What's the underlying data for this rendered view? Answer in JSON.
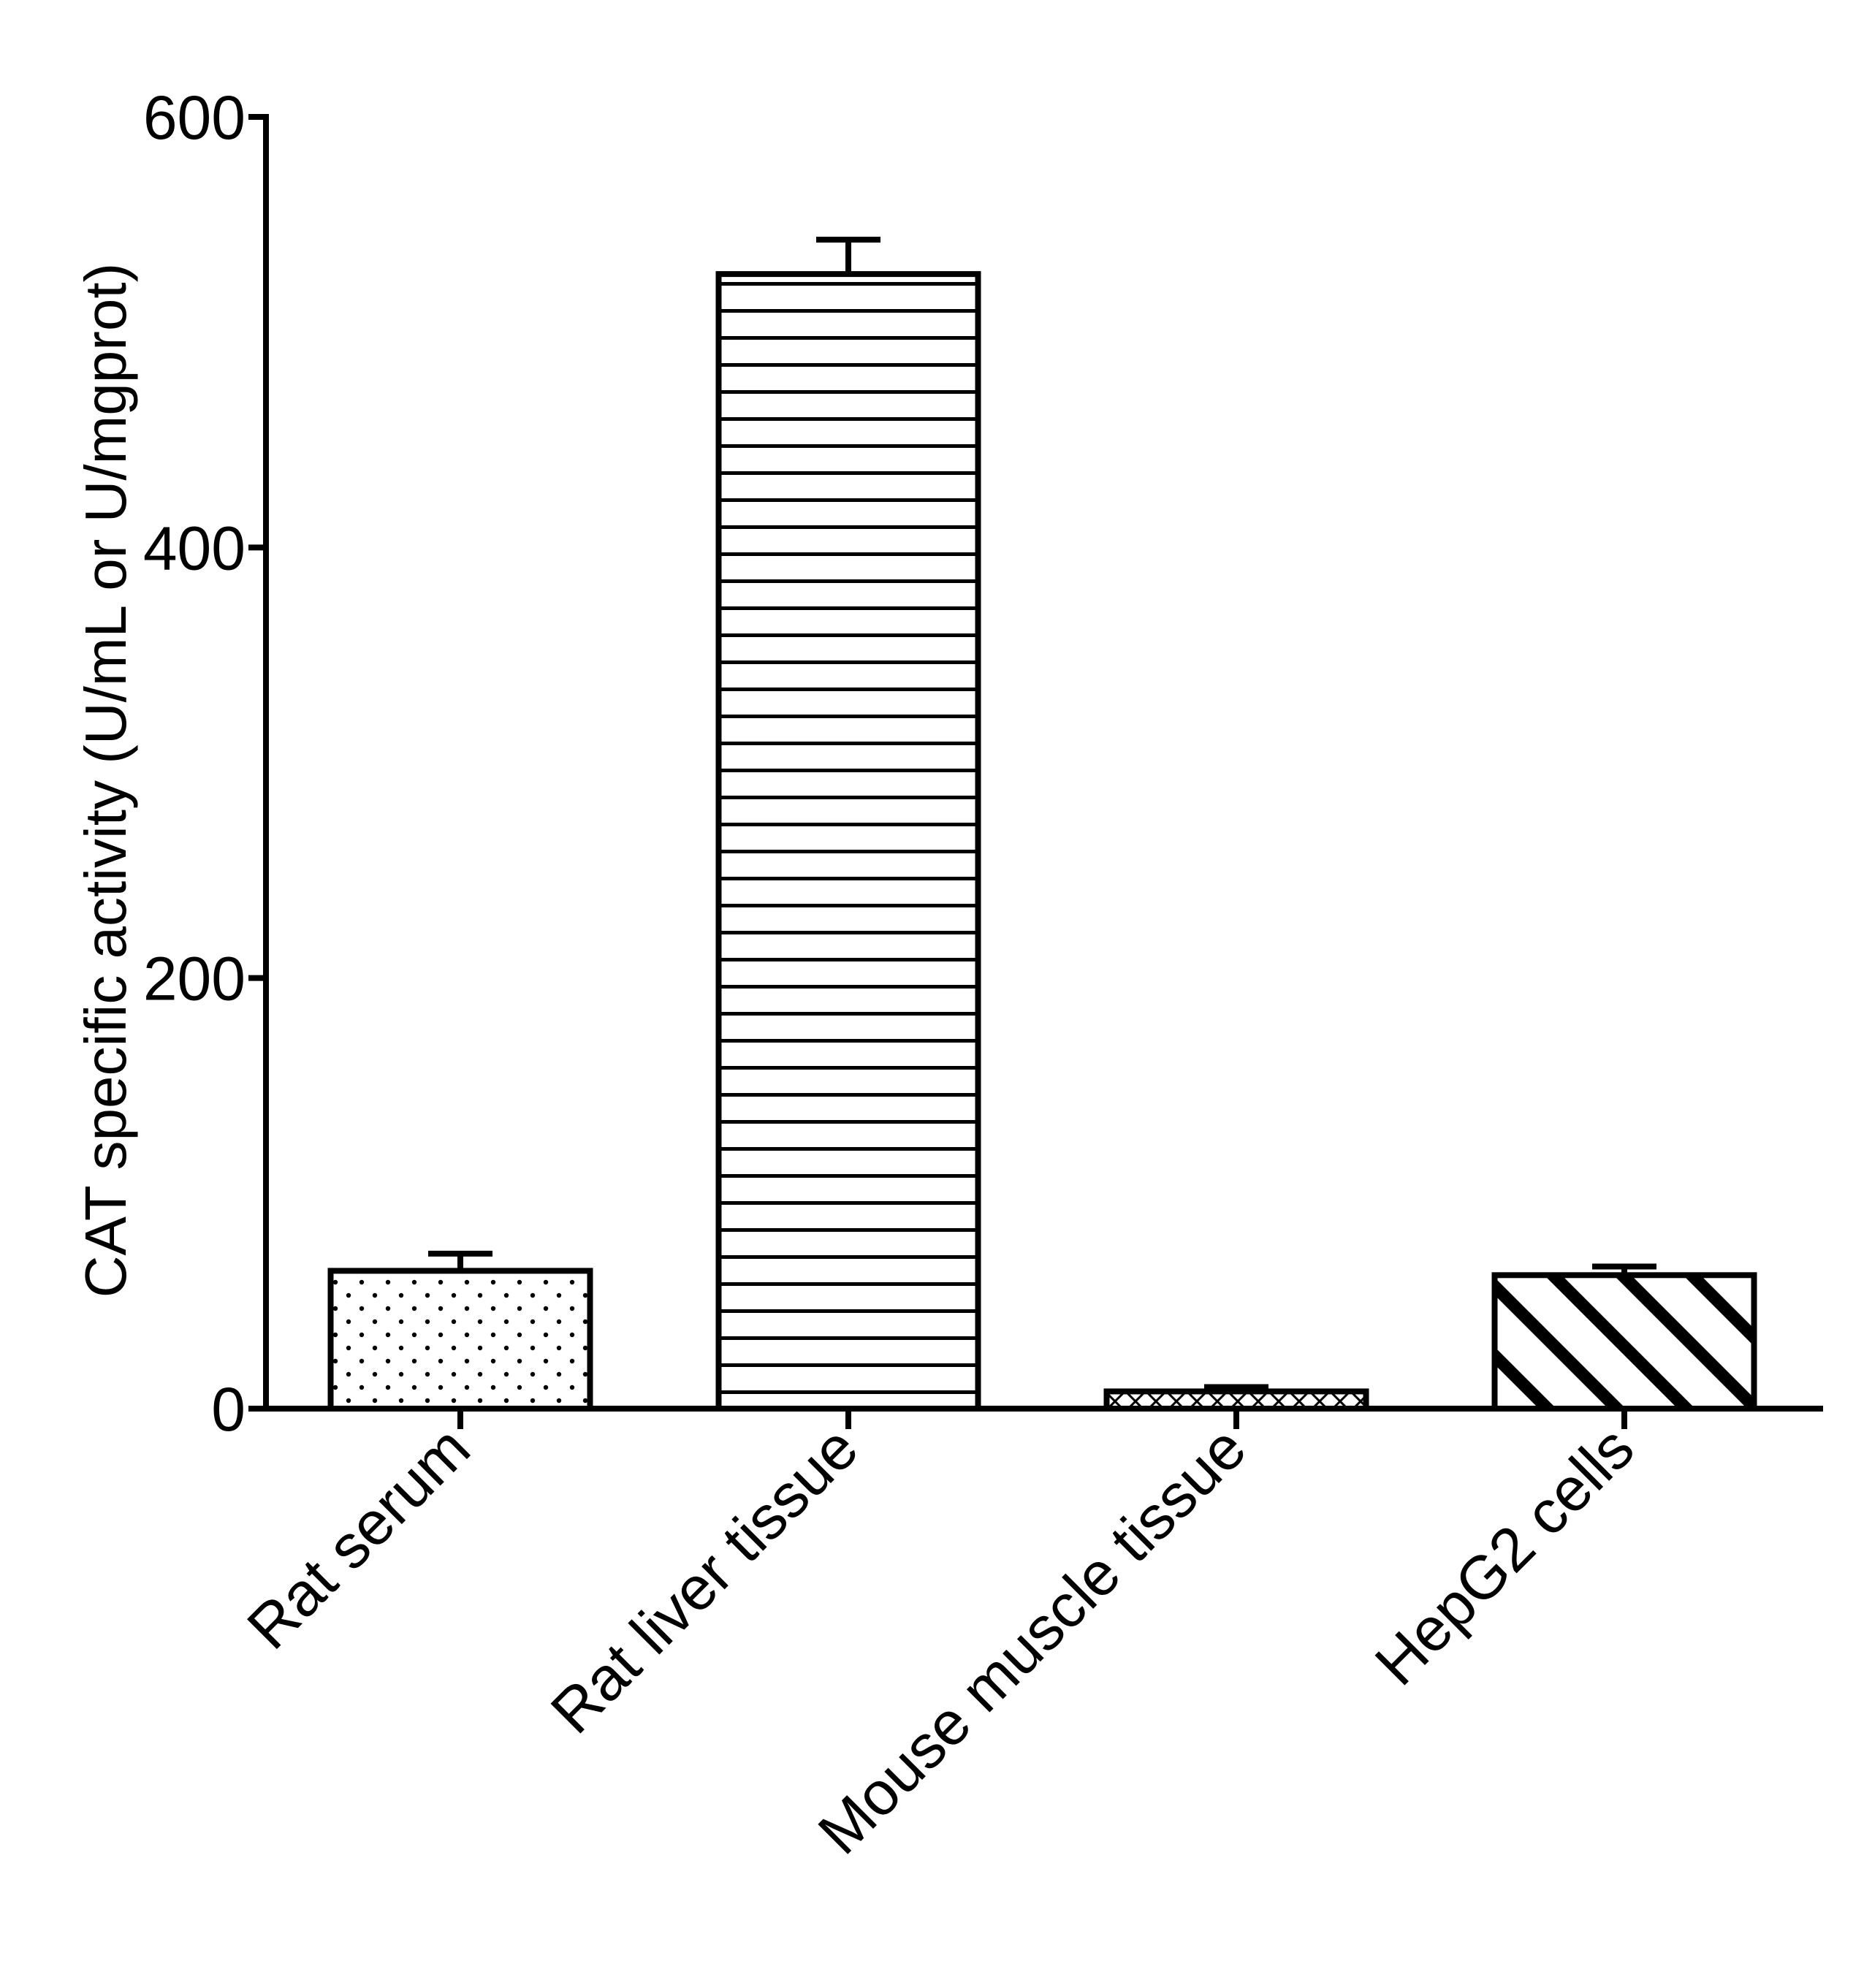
{
  "chart_data": {
    "type": "bar",
    "title": "",
    "xlabel": "",
    "ylabel": "CAT specific activity (U/mL or U/mgprot)",
    "ylim": [
      0,
      600
    ],
    "yticks": [
      0,
      200,
      400,
      600
    ],
    "yticks_labels": [
      "0",
      "200",
      "400",
      "600"
    ],
    "grid": false,
    "legend": "none",
    "categories": [
      "Rat serum",
      "Rat  liver tissue",
      "Mouse muscle tissue",
      "HepG2 cells"
    ],
    "values": [
      64,
      527,
      8,
      62
    ],
    "errors": [
      8,
      16,
      2,
      4
    ],
    "patterns": [
      "dots",
      "horizontal-lines",
      "crosshatch",
      "diagonal-stripes"
    ],
    "colors": {
      "bar_fill": "#ffffff",
      "stroke": "#000000"
    }
  }
}
